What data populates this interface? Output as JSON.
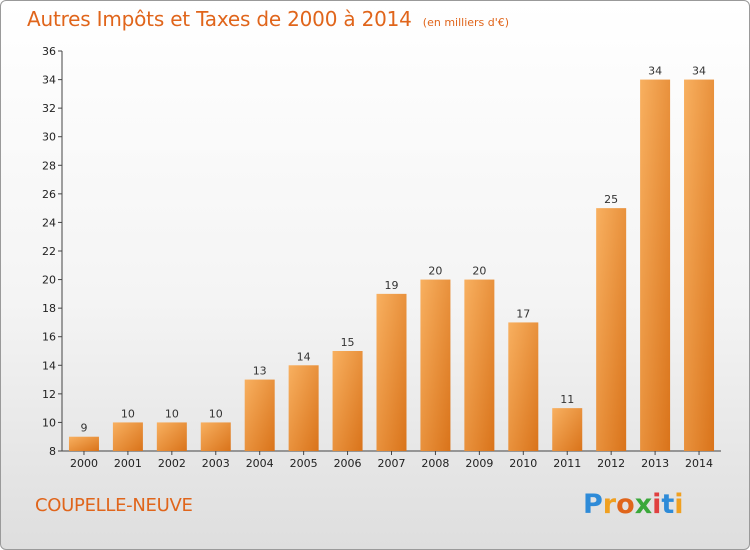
{
  "chart_data": {
    "type": "bar",
    "title": "Autres Impôts et Taxes de 2000 à 2014",
    "unit": "(en milliers d'€)",
    "categories": [
      "2000",
      "2001",
      "2002",
      "2003",
      "2004",
      "2005",
      "2006",
      "2007",
      "2008",
      "2009",
      "2010",
      "2011",
      "2012",
      "2013",
      "2014"
    ],
    "values": [
      9,
      10,
      10,
      10,
      13,
      14,
      15,
      19,
      20,
      20,
      17,
      11,
      25,
      34,
      34
    ],
    "ylim": [
      8,
      36
    ],
    "yticks": [
      8,
      10,
      12,
      14,
      16,
      18,
      20,
      22,
      24,
      26,
      28,
      30,
      32,
      34,
      36
    ],
    "grid": false,
    "bar_color": "#f08a2c"
  },
  "place": "COUPELLE-NEUVE",
  "logo": {
    "letters": [
      "P",
      "r",
      "o",
      "x",
      "i",
      "t",
      "i"
    ],
    "colors": [
      "#2e8bd8",
      "#f0a020",
      "#e0651b",
      "#3aa83a",
      "#e04040",
      "#2e8bd8",
      "#f0a020"
    ]
  }
}
